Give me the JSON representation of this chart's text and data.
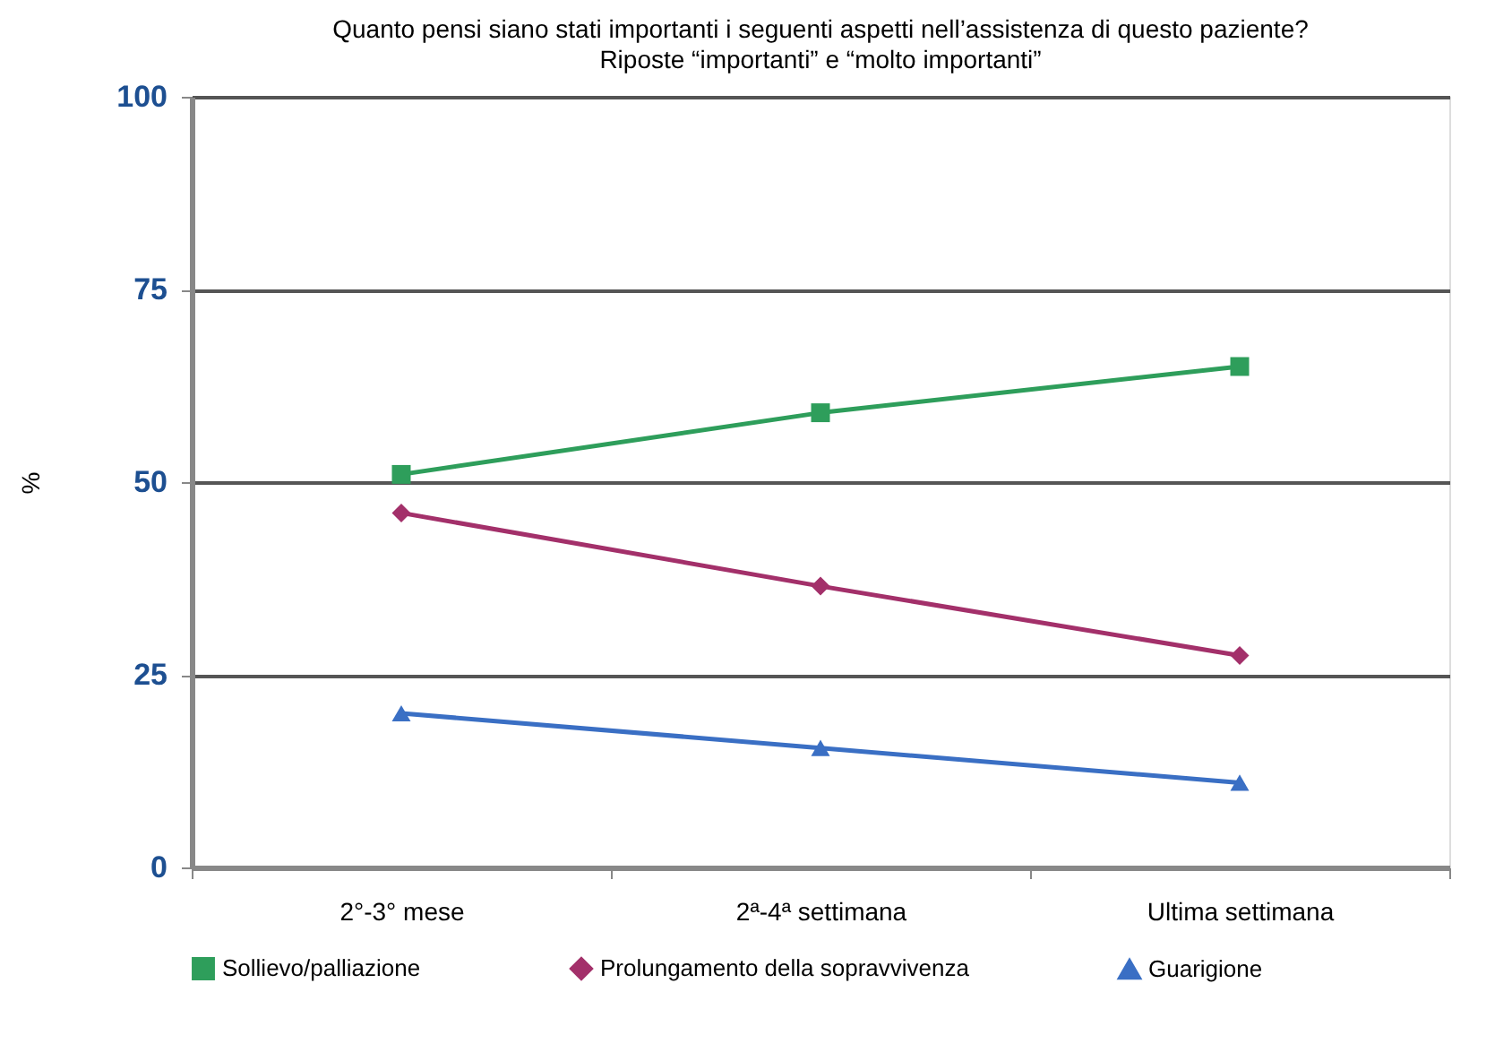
{
  "chart_data": {
    "type": "line",
    "title": "Quanto pensi siano stati importanti i seguenti aspetti nell’assistenza di questo paziente?",
    "subtitle": "Riposte “importanti” e “molto importanti”",
    "ylabel": "%",
    "categories": [
      "2°-3° mese",
      "2ª-4ª settimana",
      "Ultima settimana"
    ],
    "series": [
      {
        "name": "Sollievo/palliazione",
        "color": "#2e9e5b",
        "marker": "square",
        "values": [
          51,
          59,
          65
        ]
      },
      {
        "name": "Prolungamento della sopravvivenza",
        "color": "#a3306a",
        "marker": "diamond",
        "values": [
          46,
          36.5,
          27.5
        ]
      },
      {
        "name": "Guarigione",
        "color": "#3a6fc4",
        "marker": "triangle",
        "values": [
          20,
          15.5,
          11
        ]
      }
    ],
    "ylim": [
      0,
      100
    ],
    "yticks": [
      0,
      25,
      50,
      75,
      100
    ],
    "grid": "y",
    "legend": "bottom"
  }
}
